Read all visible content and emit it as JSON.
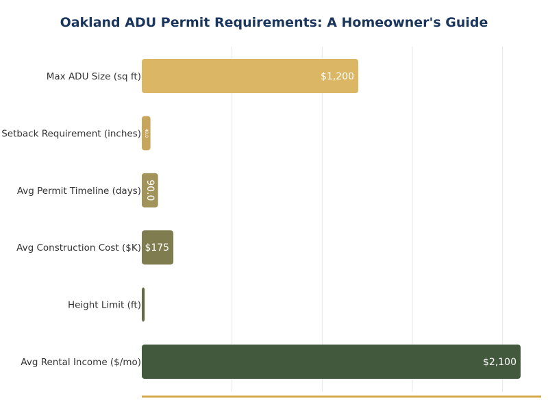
{
  "title": "Oakland ADU Permit Requirements: A Homeowner's Guide",
  "chart_data": {
    "type": "bar",
    "orientation": "horizontal",
    "title": "Oakland ADU Permit Requirements: A Homeowner's Guide",
    "xlabel": "",
    "ylabel": "",
    "xlim": [
      0,
      2200
    ],
    "grid": true,
    "categories": [
      "Max ADU Size (sq ft)",
      "Setback Requirement (inches)",
      "Avg Permit Timeline (days)",
      "Avg Construction Cost ($K)",
      "Height Limit (ft)",
      "Avg Rental Income ($/mo)"
    ],
    "values": [
      1200,
      48,
      90,
      175,
      16,
      2100
    ],
    "value_labels": [
      "$1,200",
      "48.0",
      "90.0",
      "$175",
      "",
      "$2,100"
    ],
    "colors": [
      "#dbb665",
      "#c8a55d",
      "#a1935a",
      "#7f7d4f",
      "#636b47",
      "#43593e"
    ]
  }
}
